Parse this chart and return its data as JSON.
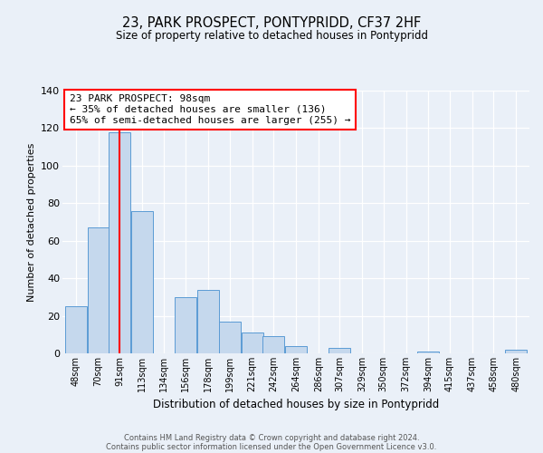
{
  "title1": "23, PARK PROSPECT, PONTYPRIDD, CF37 2HF",
  "title2": "Size of property relative to detached houses in Pontypridd",
  "xlabel": "Distribution of detached houses by size in Pontypridd",
  "ylabel": "Number of detached properties",
  "bin_labels": [
    "48sqm",
    "70sqm",
    "91sqm",
    "113sqm",
    "134sqm",
    "156sqm",
    "178sqm",
    "199sqm",
    "221sqm",
    "242sqm",
    "264sqm",
    "286sqm",
    "307sqm",
    "329sqm",
    "350sqm",
    "372sqm",
    "394sqm",
    "415sqm",
    "437sqm",
    "458sqm",
    "480sqm"
  ],
  "bar_heights": [
    25,
    67,
    118,
    76,
    0,
    30,
    34,
    17,
    11,
    9,
    4,
    0,
    3,
    0,
    0,
    0,
    1,
    0,
    0,
    0,
    2
  ],
  "bar_color": "#c5d8ed",
  "bar_edge_color": "#5b9bd5",
  "vline_color": "red",
  "ylim": [
    0,
    140
  ],
  "yticks": [
    0,
    20,
    40,
    60,
    80,
    100,
    120,
    140
  ],
  "annotation_line1": "23 PARK PROSPECT: 98sqm",
  "annotation_line2": "← 35% of detached houses are smaller (136)",
  "annotation_line3": "65% of semi-detached houses are larger (255) →",
  "footer1": "Contains HM Land Registry data © Crown copyright and database right 2024.",
  "footer2": "Contains public sector information licensed under the Open Government Licence v3.0.",
  "background_color": "#eaf0f8",
  "plot_background": "#eaf0f8"
}
